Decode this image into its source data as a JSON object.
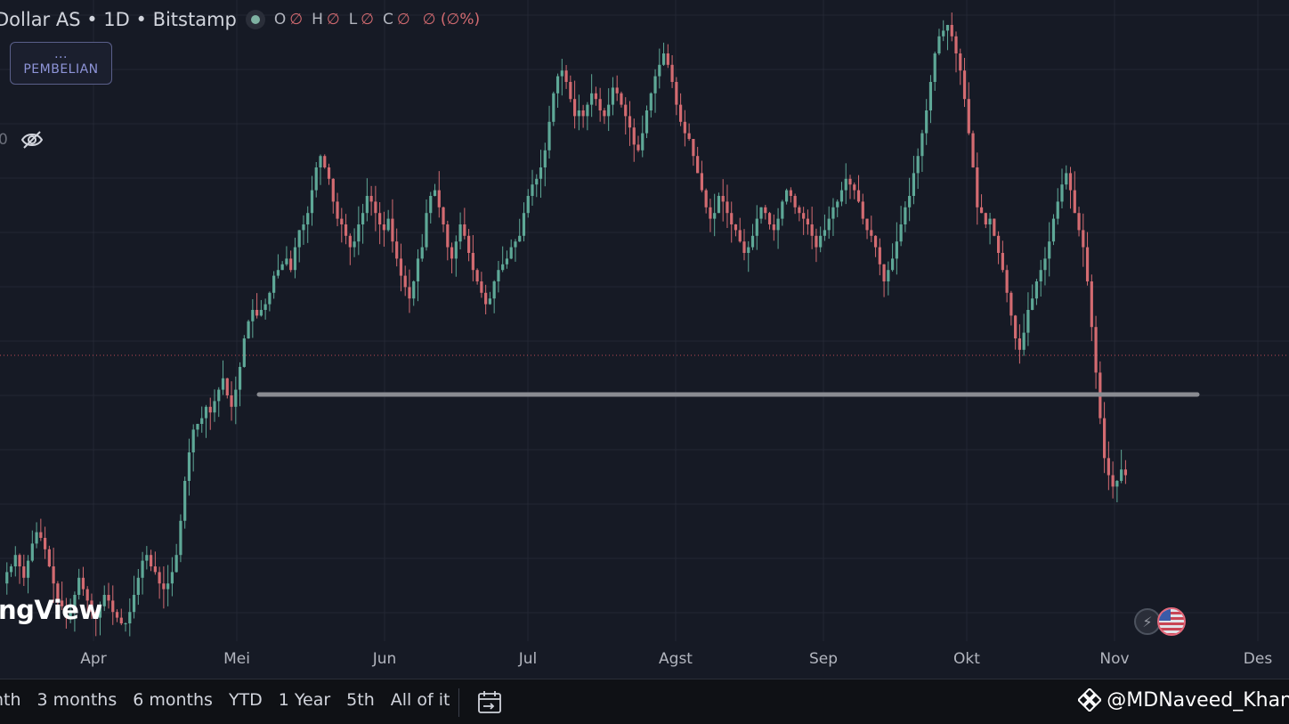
{
  "header": {
    "symbol_title": "Dollar AS • 1D • Bitstamp",
    "ohlc": [
      {
        "key": "O",
        "value": "∅"
      },
      {
        "key": "H",
        "value": "∅"
      },
      {
        "key": "L",
        "value": "∅"
      },
      {
        "key": "C",
        "value": "∅"
      },
      {
        "key": "",
        "value": "∅ (∅%)"
      }
    ]
  },
  "buy_button": {
    "dots": "...",
    "label": "PEMBELIAN"
  },
  "indicator_row": {
    "value": "0"
  },
  "watermark": "ngView",
  "time_axis": {
    "months": [
      "Apr",
      "Mei",
      "Jun",
      "Jul",
      "Agst",
      "Sep",
      "Okt",
      "Nov",
      "Des"
    ]
  },
  "bottom_bar": {
    "ranges": [
      "nth",
      "3 months",
      "6 months",
      "YTD",
      "1 Year",
      "5th",
      "All of it"
    ],
    "attribution": "@MDNaveed_Khan"
  },
  "colors": {
    "background": "#161a25",
    "up": "#5ea897",
    "down": "#d36b71",
    "grid": "#232734",
    "support_line": "#8a8c92",
    "price_line": "#c04a55"
  },
  "chart_data": {
    "type": "candlestick",
    "support_level_note": "horizontal support line drawn from early May to mid November",
    "price_series": [
      0.07,
      0.09,
      0.1,
      0.12,
      0.1,
      0.08,
      0.11,
      0.14,
      0.16,
      0.15,
      0.13,
      0.1,
      0.07,
      0.04,
      0.03,
      0.01,
      0.02,
      0.05,
      0.08,
      0.06,
      0.04,
      0.02,
      0.01,
      0.03,
      0.05,
      0.04,
      0.02,
      0.01,
      0.0,
      0.0,
      0.02,
      0.05,
      0.08,
      0.11,
      0.12,
      0.1,
      0.09,
      0.07,
      0.06,
      0.07,
      0.09,
      0.12,
      0.18,
      0.25,
      0.3,
      0.34,
      0.35,
      0.36,
      0.38,
      0.37,
      0.39,
      0.41,
      0.43,
      0.4,
      0.38,
      0.41,
      0.45,
      0.5,
      0.53,
      0.55,
      0.54,
      0.55,
      0.56,
      0.58,
      0.61,
      0.62,
      0.63,
      0.64,
      0.62,
      0.66,
      0.69,
      0.7,
      0.72,
      0.76,
      0.8,
      0.82,
      0.8,
      0.78,
      0.74,
      0.71,
      0.7,
      0.68,
      0.66,
      0.67,
      0.7,
      0.72,
      0.75,
      0.74,
      0.72,
      0.7,
      0.69,
      0.71,
      0.67,
      0.64,
      0.61,
      0.59,
      0.57,
      0.6,
      0.64,
      0.66,
      0.72,
      0.75,
      0.76,
      0.73,
      0.7,
      0.66,
      0.64,
      0.67,
      0.7,
      0.68,
      0.65,
      0.62,
      0.6,
      0.58,
      0.56,
      0.57,
      0.6,
      0.62,
      0.63,
      0.64,
      0.66,
      0.67,
      0.68,
      0.72,
      0.75,
      0.77,
      0.78,
      0.8,
      0.83,
      0.88,
      0.93,
      0.96,
      0.97,
      0.95,
      0.92,
      0.89,
      0.9,
      0.89,
      0.91,
      0.93,
      0.92,
      0.9,
      0.89,
      0.91,
      0.94,
      0.93,
      0.91,
      0.89,
      0.87,
      0.84,
      0.83,
      0.86,
      0.9,
      0.93,
      0.96,
      0.98,
      1.0,
      0.98,
      0.95,
      0.91,
      0.88,
      0.86,
      0.85,
      0.82,
      0.79,
      0.76,
      0.73,
      0.71,
      0.72,
      0.75,
      0.74,
      0.72,
      0.7,
      0.69,
      0.67,
      0.65,
      0.66,
      0.68,
      0.71,
      0.73,
      0.72,
      0.7,
      0.69,
      0.71,
      0.74,
      0.76,
      0.75,
      0.73,
      0.72,
      0.71,
      0.7,
      0.68,
      0.66,
      0.68,
      0.69,
      0.71,
      0.73,
      0.74,
      0.76,
      0.78,
      0.77,
      0.76,
      0.74,
      0.71,
      0.69,
      0.68,
      0.66,
      0.63,
      0.6,
      0.62,
      0.64,
      0.67,
      0.7,
      0.73,
      0.75,
      0.79,
      0.82,
      0.86,
      0.9,
      0.95,
      1.0,
      1.03,
      1.04,
      1.05,
      1.03,
      1.0,
      0.97,
      0.92,
      0.86,
      0.8,
      0.73,
      0.72,
      0.7,
      0.71,
      0.68,
      0.65,
      0.62,
      0.58,
      0.54,
      0.5,
      0.48,
      0.51,
      0.55,
      0.57,
      0.6,
      0.62,
      0.64,
      0.67,
      0.71,
      0.74,
      0.77,
      0.79,
      0.76,
      0.72,
      0.69,
      0.66,
      0.6,
      0.52,
      0.44,
      0.36,
      0.29,
      0.26,
      0.24,
      0.25,
      0.27,
      0.26
    ]
  }
}
